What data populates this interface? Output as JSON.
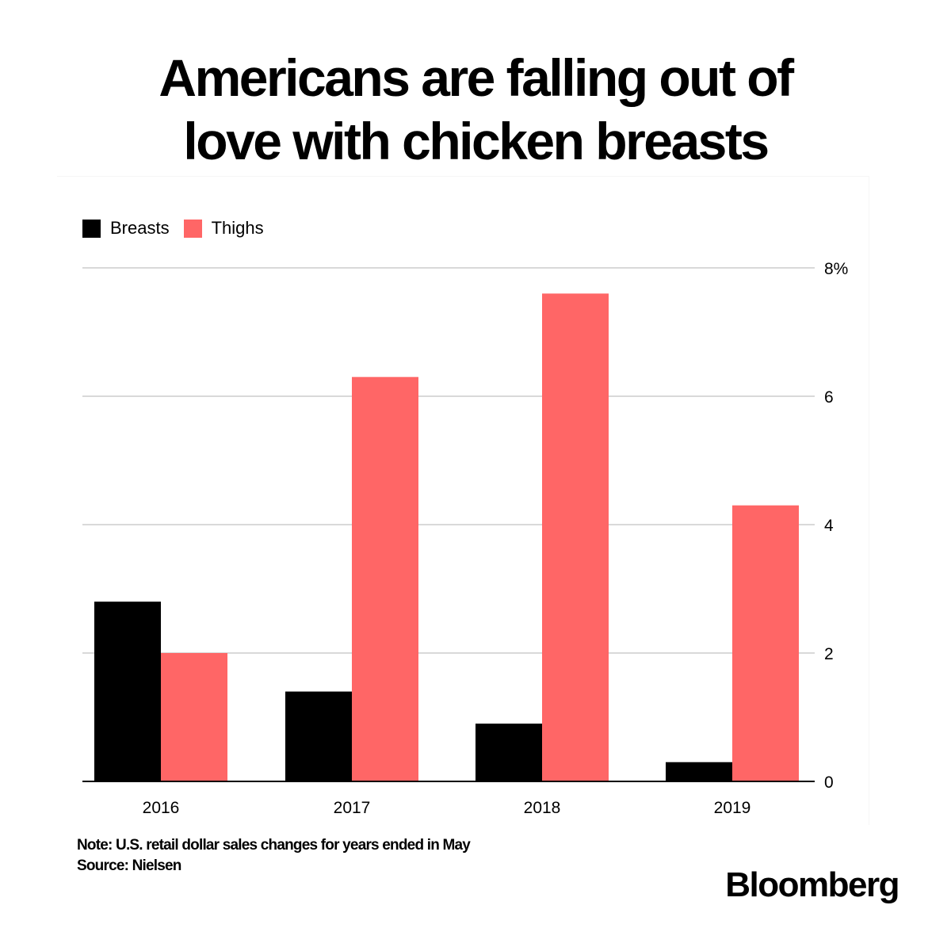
{
  "title": {
    "line1": "Americans are falling out of",
    "line2": "love with chicken breasts"
  },
  "note": "Note: U.S. retail dollar sales changes for years ended in May",
  "source": "Source: Nielsen",
  "brand": "Bloomberg",
  "colors": {
    "breasts": "#000000",
    "thighs": "#ff6666",
    "grid": "#d9d9d9",
    "axis": "#000000"
  },
  "chart_data": {
    "type": "bar",
    "categories": [
      "2016",
      "2017",
      "2018",
      "2019"
    ],
    "series": [
      {
        "name": "Breasts",
        "values": [
          2.8,
          1.4,
          0.9,
          0.3
        ]
      },
      {
        "name": "Thighs",
        "values": [
          2.0,
          6.3,
          7.6,
          4.3
        ]
      }
    ],
    "ylim": [
      0,
      8
    ],
    "yticks": [
      0,
      2,
      4,
      6,
      8
    ],
    "ytick_labels": [
      "0",
      "2",
      "4",
      "6",
      "8%"
    ],
    "yaxis_side": "right",
    "grid": true,
    "legend_position": "top-left",
    "xlabel": "",
    "ylabel": ""
  }
}
